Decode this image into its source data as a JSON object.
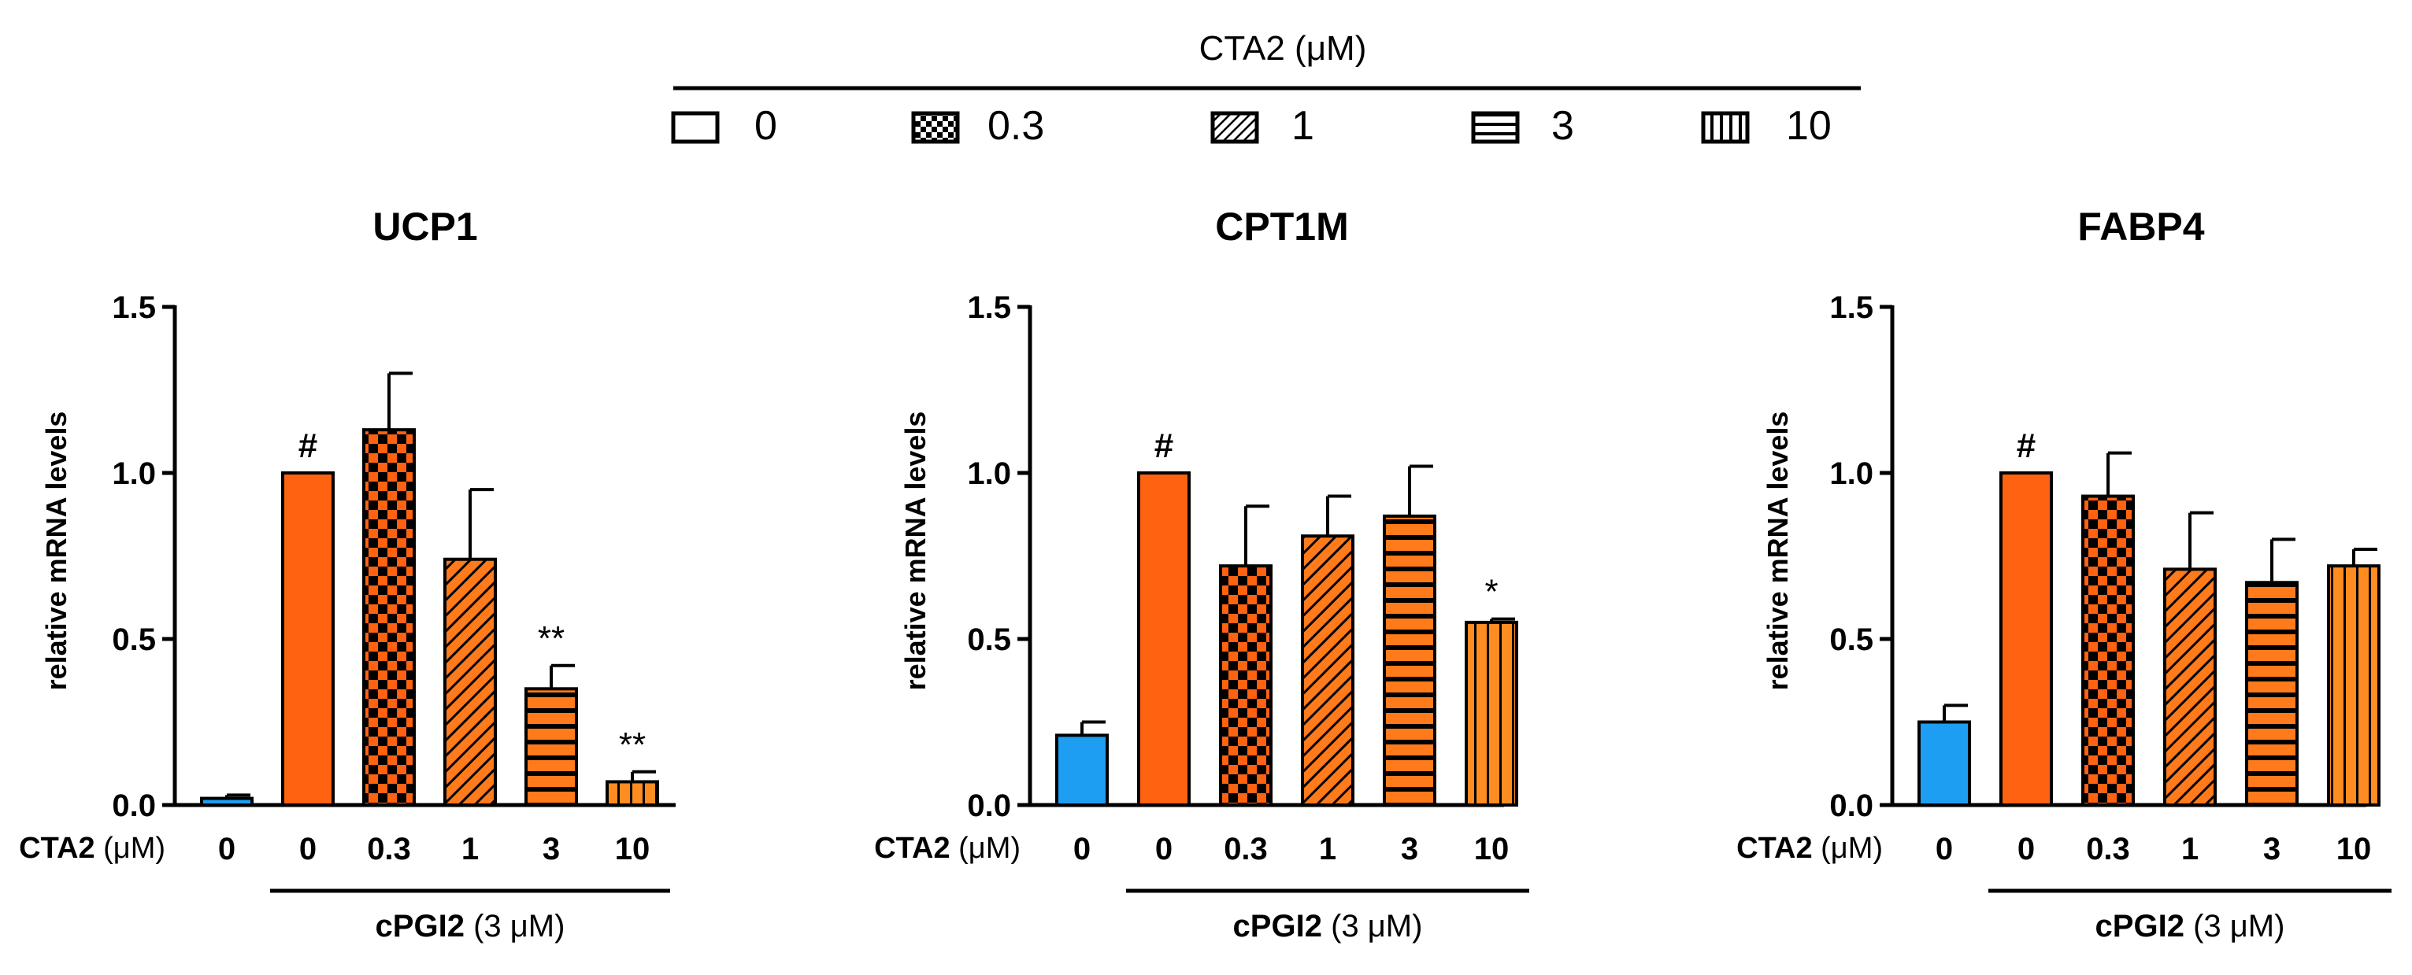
{
  "legend": {
    "title": "CTA2 (μM)",
    "items": [
      {
        "label": "0",
        "pattern": "none"
      },
      {
        "label": "0.3",
        "pattern": "checker"
      },
      {
        "label": "1",
        "pattern": "diag"
      },
      {
        "label": "3",
        "pattern": "hlines"
      },
      {
        "label": "10",
        "pattern": "vlines"
      }
    ]
  },
  "colors": {
    "control": "#1e9ef2",
    "treated": "#ff6210",
    "treated_light": "#ff9a3c",
    "axis": "#000000"
  },
  "chart_data": [
    {
      "type": "bar",
      "title": "UCP1",
      "ylabel": "relative mRNA levels",
      "ylim": [
        0,
        1.5
      ],
      "yticks": [
        "0.0",
        "0.5",
        "1.0",
        "1.5"
      ],
      "xrow_label": "CTA2",
      "xrow_unit": "(μM)",
      "categories": [
        "0",
        "0",
        "0.3",
        "1",
        "3",
        "10"
      ],
      "values": [
        0.02,
        1.0,
        1.13,
        0.74,
        0.35,
        0.07
      ],
      "errors": [
        0.01,
        0.0,
        0.17,
        0.21,
        0.07,
        0.03
      ],
      "annotations": [
        "",
        "#",
        "",
        "",
        "**",
        "**"
      ],
      "group_label": "cPGI2",
      "group_unit": "(3 μM)"
    },
    {
      "type": "bar",
      "title": "CPT1M",
      "ylabel": "relative mRNA levels",
      "ylim": [
        0,
        1.5
      ],
      "yticks": [
        "0.0",
        "0.5",
        "1.0",
        "1.5"
      ],
      "xrow_label": "CTA2",
      "xrow_unit": "(μM)",
      "categories": [
        "0",
        "0",
        "0.3",
        "1",
        "3",
        "10"
      ],
      "values": [
        0.21,
        1.0,
        0.72,
        0.81,
        0.87,
        0.55
      ],
      "errors": [
        0.04,
        0.0,
        0.18,
        0.12,
        0.15,
        0.01
      ],
      "annotations": [
        "",
        "#",
        "",
        "",
        "",
        "*"
      ],
      "group_label": "cPGI2",
      "group_unit": "(3 μM)"
    },
    {
      "type": "bar",
      "title": "FABP4",
      "ylabel": "relative mRNA levels",
      "ylim": [
        0,
        1.5
      ],
      "yticks": [
        "0.0",
        "0.5",
        "1.0",
        "1.5"
      ],
      "xrow_label": "CTA2",
      "xrow_unit": "(μM)",
      "categories": [
        "0",
        "0",
        "0.3",
        "1",
        "3",
        "10"
      ],
      "values": [
        0.25,
        1.0,
        0.93,
        0.71,
        0.67,
        0.72
      ],
      "errors": [
        0.05,
        0.0,
        0.13,
        0.17,
        0.13,
        0.05
      ],
      "annotations": [
        "",
        "#",
        "",
        "",
        "",
        ""
      ],
      "group_label": "cPGI2",
      "group_unit": "(3 μM)"
    }
  ]
}
